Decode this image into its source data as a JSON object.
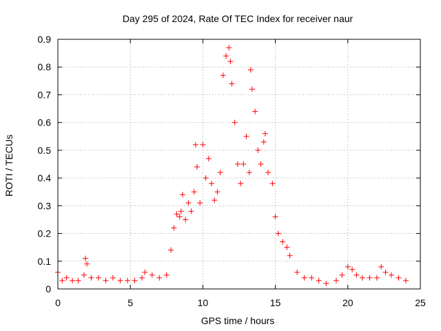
{
  "chart_data": {
    "type": "scatter",
    "title": "Day 295 of 2024, Rate Of TEC Index for receiver naur",
    "xlabel": "GPS time / hours",
    "ylabel": "ROTI / TECUs",
    "xlim": [
      0,
      25
    ],
    "ylim": [
      0,
      0.9
    ],
    "x_ticks": [
      0,
      5,
      10,
      15,
      20,
      25
    ],
    "y_ticks": [
      0,
      0.1,
      0.2,
      0.3,
      0.4,
      0.5,
      0.6,
      0.7,
      0.8,
      0.9
    ],
    "grid": true,
    "marker": "+",
    "series_color": "#ff0000",
    "series": [
      {
        "x": [
          0.0,
          0.3,
          0.6,
          1.0,
          1.4,
          1.8,
          1.9,
          2.0,
          2.3,
          2.8,
          3.3,
          3.8,
          4.3,
          4.8,
          5.3,
          5.8,
          6.0,
          6.5,
          7.0,
          7.5,
          7.8,
          8.0,
          8.2,
          8.4,
          8.5,
          8.6,
          8.8,
          9.0,
          9.2,
          9.4,
          9.5,
          9.6,
          9.8,
          10.0,
          10.2,
          10.4,
          10.6,
          10.8,
          11.0,
          11.2,
          11.4,
          11.6,
          11.8,
          11.9,
          12.0,
          12.2,
          12.4,
          12.6,
          12.8,
          13.0,
          13.2,
          13.3,
          13.4,
          13.6,
          13.8,
          14.0,
          14.2,
          14.3,
          14.5,
          14.8,
          15.0,
          15.2,
          15.5,
          15.8,
          16.0,
          16.5,
          17.0,
          17.5,
          18.0,
          18.5,
          19.2,
          19.6,
          20.0,
          20.3,
          20.6,
          21.0,
          21.5,
          22.0,
          22.3,
          22.6,
          23.0,
          23.5,
          24.0
        ],
        "y": [
          0.06,
          0.03,
          0.04,
          0.03,
          0.03,
          0.05,
          0.11,
          0.09,
          0.04,
          0.04,
          0.03,
          0.04,
          0.03,
          0.03,
          0.03,
          0.04,
          0.06,
          0.05,
          0.04,
          0.05,
          0.14,
          0.22,
          0.27,
          0.26,
          0.28,
          0.34,
          0.25,
          0.31,
          0.28,
          0.35,
          0.52,
          0.44,
          0.31,
          0.52,
          0.4,
          0.47,
          0.38,
          0.32,
          0.35,
          0.42,
          0.77,
          0.84,
          0.87,
          0.82,
          0.74,
          0.6,
          0.45,
          0.38,
          0.45,
          0.55,
          0.42,
          0.79,
          0.72,
          0.64,
          0.5,
          0.45,
          0.53,
          0.56,
          0.42,
          0.38,
          0.26,
          0.2,
          0.17,
          0.15,
          0.12,
          0.06,
          0.04,
          0.04,
          0.03,
          0.02,
          0.03,
          0.05,
          0.08,
          0.07,
          0.05,
          0.04,
          0.04,
          0.04,
          0.08,
          0.06,
          0.05,
          0.04,
          0.03
        ]
      }
    ]
  }
}
